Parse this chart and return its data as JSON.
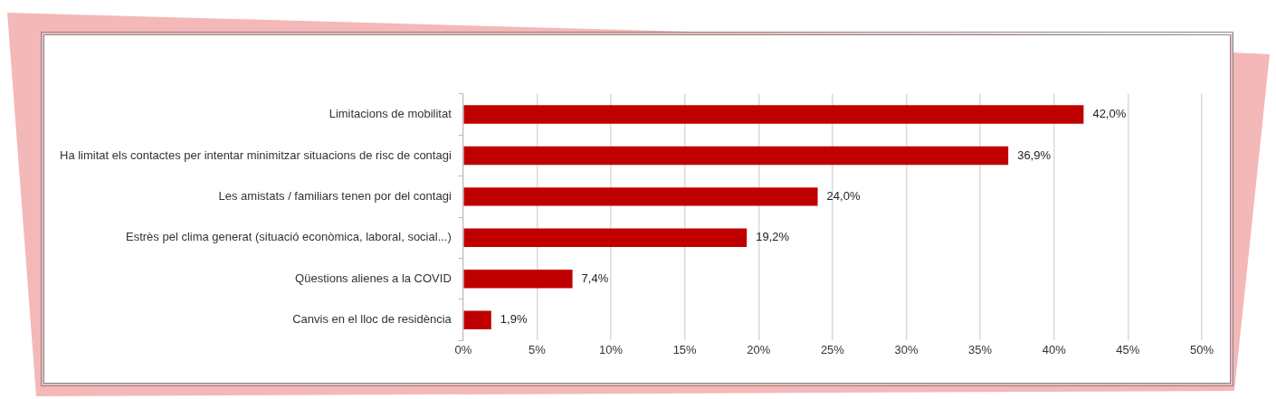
{
  "chart_data": {
    "type": "bar",
    "orientation": "horizontal",
    "categories": [
      "Limitacions de mobilitat",
      "Ha limitat els contactes per intentar minimitzar situacions de risc de contagi",
      "Les amistats / familiars tenen por del contagi",
      "Estrès pel clima generat (situació econòmica, laboral, social...)",
      "Qüestions alienes a la COVID",
      "Canvis en el lloc de residència"
    ],
    "values": [
      42.0,
      36.9,
      24.0,
      19.2,
      7.4,
      1.9
    ],
    "value_labels": [
      "42,0%",
      "36,9%",
      "24,0%",
      "19,2%",
      "7,4%",
      "1,9%"
    ],
    "color": "#c00000",
    "xlim": [
      0,
      50
    ],
    "xticks": [
      {
        "value": 0,
        "label": "0%"
      },
      {
        "value": 5,
        "label": "5%"
      },
      {
        "value": 10,
        "label": "10%"
      },
      {
        "value": 15,
        "label": "15%"
      },
      {
        "value": 20,
        "label": "20%"
      },
      {
        "value": 25,
        "label": "25%"
      },
      {
        "value": 30,
        "label": "30%"
      },
      {
        "value": 35,
        "label": "35%"
      },
      {
        "value": 40,
        "label": "40%"
      },
      {
        "value": 45,
        "label": "45%"
      },
      {
        "value": 50,
        "label": "50%"
      }
    ],
    "grid": "x"
  }
}
